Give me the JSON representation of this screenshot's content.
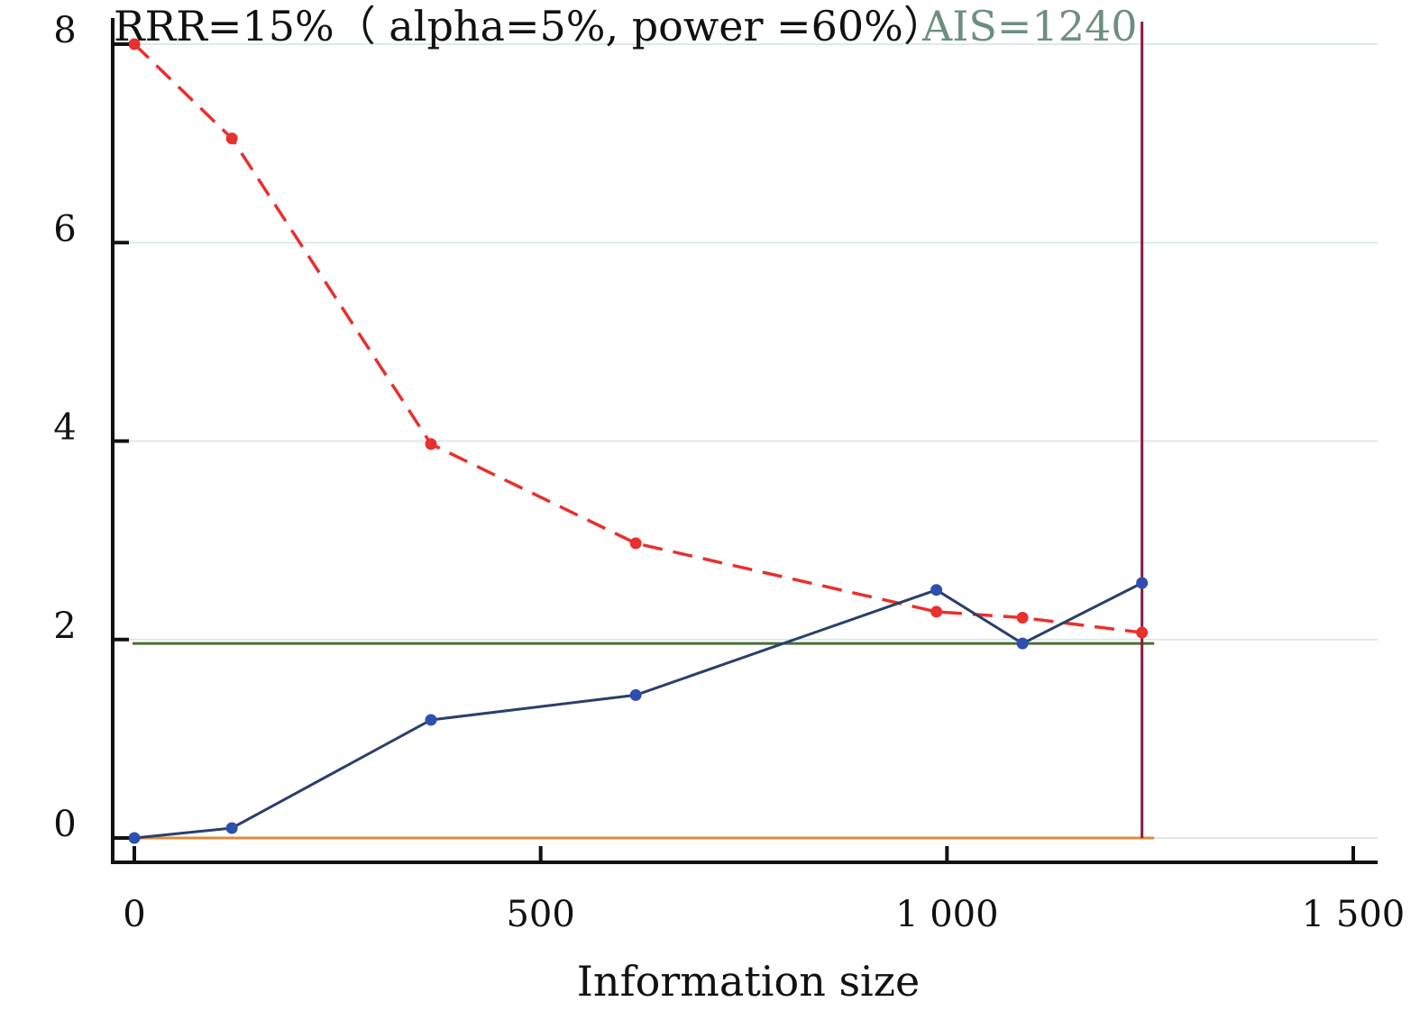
{
  "chart_data": {
    "type": "line",
    "title": "RRR=15%（ alpha=5%, power =60%）",
    "annotations": {
      "ais": "AIS=1240"
    },
    "xlabel": "Information size",
    "ylabel": "",
    "xlim": [
      -30,
      1530
    ],
    "ylim": [
      -0.3,
      8.1
    ],
    "x_ticks": [
      0,
      500,
      1000,
      1500
    ],
    "x_tick_labels": [
      "0",
      "500",
      "1 000",
      "1 500"
    ],
    "y_ticks": [
      0,
      2,
      4,
      6,
      8
    ],
    "y_tick_labels": [
      "0",
      "2",
      "4",
      "6",
      "8"
    ],
    "grid": "horizontal",
    "series": [
      {
        "style": "dashed",
        "color": "#e8302e",
        "marker": "circle",
        "x": [
          0,
          120,
          365,
          617,
          987,
          1093,
          1240
        ],
        "y": [
          8.0,
          7.05,
          3.97,
          2.97,
          2.28,
          2.22,
          2.07
        ]
      },
      {
        "style": "solid",
        "color": "#2b3f6b",
        "marker": "circle",
        "marker_color": "#2c4fb0",
        "x": [
          0,
          120,
          365,
          617,
          987,
          1093,
          1240
        ],
        "y": [
          0.0,
          0.1,
          1.19,
          1.44,
          2.5,
          1.96,
          2.57
        ]
      }
    ],
    "reference_lines": {
      "horizontal": [
        {
          "y": 1.96,
          "color": "#4a6e38",
          "x_end": 1255
        },
        {
          "y": 0,
          "color": "#de8a3a",
          "x_end": 1255
        }
      ],
      "vertical": [
        {
          "x": 1240,
          "color": "#8a1a3a",
          "y_start": 0,
          "y_end": 8.0
        }
      ]
    }
  }
}
